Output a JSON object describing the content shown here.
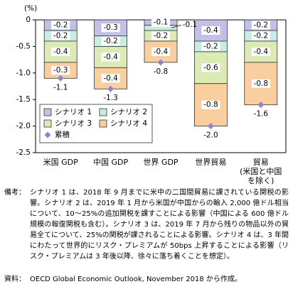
{
  "chart_data": {
    "type": "bar",
    "stacked": true,
    "unit": "(%)",
    "categories": [
      "米国 GDP",
      "中国 GDP",
      "世界 GDP",
      "世界貿易",
      "貿易\n(米国と中国\nを除く)"
    ],
    "series": [
      {
        "name": "シナリオ 1",
        "color": "#c3c0e8",
        "values": [
          -0.2,
          -0.3,
          -0.1,
          -0.4,
          -0.2
        ]
      },
      {
        "name": "シナリオ 2",
        "color": "#c8ebe3",
        "values": [
          -0.2,
          -0.2,
          -0.1,
          -0.2,
          -0.2
        ]
      },
      {
        "name": "シナリオ 3",
        "color": "#dcebb5",
        "values": [
          -0.4,
          -0.4,
          -0.2,
          -0.6,
          -0.4
        ]
      },
      {
        "name": "シナリオ 4",
        "color": "#f9cf9f",
        "values": [
          -0.3,
          -0.4,
          -0.4,
          -0.8,
          -0.8
        ]
      },
      {
        "name": "累積",
        "type": "scatter",
        "marker": "diamond",
        "color": "#8e86c6",
        "values": [
          -1.1,
          -1.3,
          -0.8,
          -2.0,
          -1.6
        ],
        "value_labels": [
          "-1.1",
          "-1.3",
          "-0.8",
          "-2.0",
          "-1.6"
        ]
      }
    ],
    "ylim": [
      0,
      -2.5
    ],
    "yticks": [
      0,
      -0.5,
      {
        "value": -1,
        "label": "-1.0"
      },
      -1.5,
      {
        "value": -2,
        "label": "-2.0"
      },
      -2.5
    ],
    "grid": false,
    "legend": "lower left"
  },
  "notes": {
    "label": "備考：",
    "text": "シナリオ 1 は、2018 年 9 月までに米中の二国間貿易に課されている関税の影響。シナリオ 2 は、2019 年 1 月から米国が中国からの輸入 2,000 億ドル相当について、10～25%の追加関税を課すことによる影響（中国による 600 億ドル規模の報復関税も含む）。シナリオ 3 は、2019 年 7 月から残りの物品以外の貿易全てについて、25%の関税が課されることによる影響。シナリオ 4 は、3 年間にわたって世界的にリスク・プレミアムが 50bps 上昇することによる影響（リスク・プレミアムは 3 年後以降、徐々に落ち着くことを想定）。"
  },
  "source": {
    "label": "資料：",
    "text": "OECD Global Economic Outlook, November 2018 から作成。"
  }
}
